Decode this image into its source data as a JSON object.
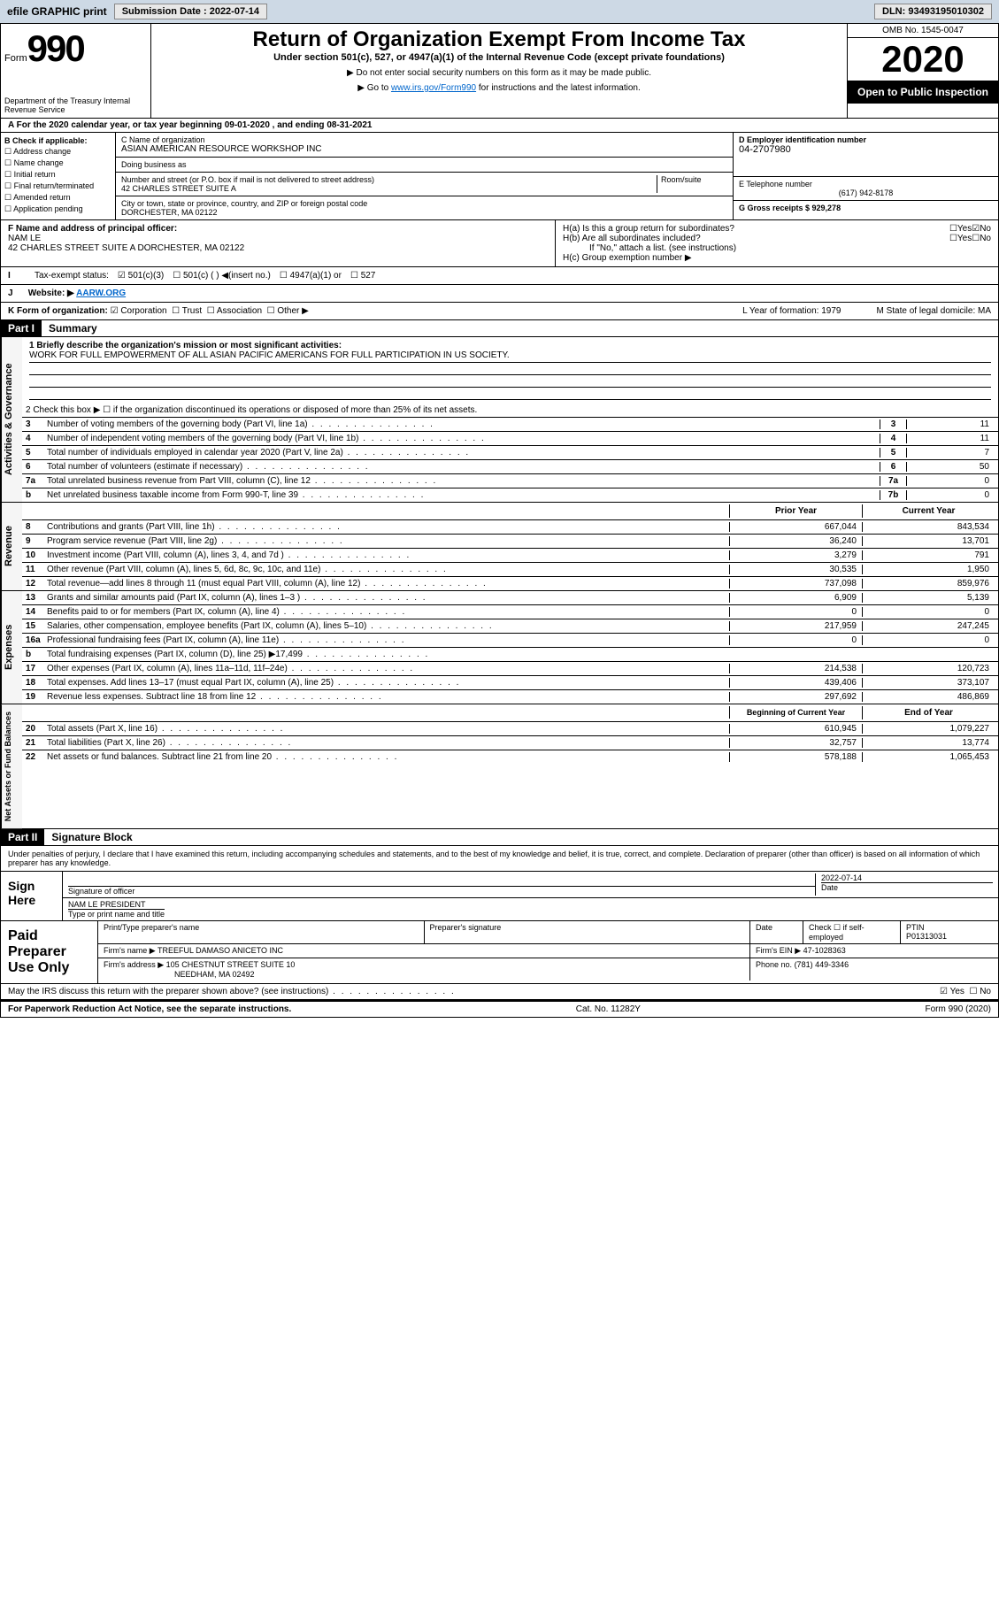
{
  "topbar": {
    "efile": "efile GRAPHIC print",
    "submission_label": "Submission Date : 2022-07-14",
    "dln": "DLN: 93493195010302"
  },
  "header": {
    "form": "Form",
    "form_num": "990",
    "dept": "Department of the Treasury Internal Revenue Service",
    "title": "Return of Organization Exempt From Income Tax",
    "subtitle": "Under section 501(c), 527, or 4947(a)(1) of the Internal Revenue Code (except private foundations)",
    "note1": "▶ Do not enter social security numbers on this form as it may be made public.",
    "note2_pre": "▶ Go to ",
    "note2_link": "www.irs.gov/Form990",
    "note2_post": " for instructions and the latest information.",
    "omb": "OMB No. 1545-0047",
    "year": "2020",
    "public": "Open to Public Inspection"
  },
  "tax_year": "A For the 2020 calendar year, or tax year beginning 09-01-2020   , and ending 08-31-2021",
  "section_b": {
    "label": "B Check if applicable:",
    "checks": [
      "Address change",
      "Name change",
      "Initial return",
      "Final return/terminated",
      "Amended return",
      "Application pending"
    ]
  },
  "section_c": {
    "name_label": "C Name of organization",
    "name": "ASIAN AMERICAN RESOURCE WORKSHOP INC",
    "dba_label": "Doing business as",
    "dba": "",
    "addr_label": "Number and street (or P.O. box if mail is not delivered to street address)",
    "room_label": "Room/suite",
    "addr": "42 CHARLES STREET SUITE A",
    "city_label": "City or town, state or province, country, and ZIP or foreign postal code",
    "city": "DORCHESTER, MA  02122"
  },
  "section_d": {
    "label": "D Employer identification number",
    "ein": "04-2707980"
  },
  "section_e": {
    "label": "E Telephone number",
    "phone": "(617) 942-8178"
  },
  "section_g": {
    "label": "G Gross receipts $ 929,278"
  },
  "section_f": {
    "label": "F  Name and address of principal officer:",
    "name": "NAM LE",
    "addr": "42 CHARLES STREET SUITE A DORCHESTER, MA  02122"
  },
  "section_h": {
    "ha": "H(a)  Is this a group return for subordinates?",
    "hb": "H(b)  Are all subordinates included?",
    "hb_note": "If \"No,\" attach a list. (see instructions)",
    "hc": "H(c)  Group exemption number ▶",
    "yes": "Yes",
    "no": "No"
  },
  "section_i": {
    "label": "Tax-exempt status:",
    "opt1": "501(c)(3)",
    "opt2": "501(c) (  ) ◀(insert no.)",
    "opt3": "4947(a)(1) or",
    "opt4": "527"
  },
  "section_j": {
    "label": "Website: ▶",
    "url": "AARW.ORG"
  },
  "section_k": {
    "label": "K Form of organization:",
    "opts": [
      "Corporation",
      "Trust",
      "Association",
      "Other ▶"
    ],
    "l_label": "L Year of formation: 1979",
    "m_label": "M State of legal domicile: MA"
  },
  "part1": {
    "header": "Part I",
    "title": "Summary",
    "line1_label": "1  Briefly describe the organization's mission or most significant activities:",
    "mission": "WORK FOR FULL EMPOWERMENT OF ALL ASIAN PACIFIC AMERICANS FOR FULL PARTICIPATION IN US SOCIETY.",
    "line2": "2   Check this box ▶ ☐  if the organization discontinued its operations or disposed of more than 25% of its net assets.",
    "governance_label": "Activities & Governance",
    "revenue_label": "Revenue",
    "expenses_label": "Expenses",
    "netassets_label": "Net Assets or Fund Balances",
    "lines_gov": [
      {
        "n": "3",
        "t": "Number of voting members of the governing body (Part VI, line 1a)",
        "b": "3",
        "v": "11"
      },
      {
        "n": "4",
        "t": "Number of independent voting members of the governing body (Part VI, line 1b)",
        "b": "4",
        "v": "11"
      },
      {
        "n": "5",
        "t": "Total number of individuals employed in calendar year 2020 (Part V, line 2a)",
        "b": "5",
        "v": "7"
      },
      {
        "n": "6",
        "t": "Total number of volunteers (estimate if necessary)",
        "b": "6",
        "v": "50"
      },
      {
        "n": "7a",
        "t": "Total unrelated business revenue from Part VIII, column (C), line 12",
        "b": "7a",
        "v": "0"
      },
      {
        "n": "b",
        "t": "Net unrelated business taxable income from Form 990-T, line 39",
        "b": "7b",
        "v": "0"
      }
    ],
    "prior_year": "Prior Year",
    "current_year": "Current Year",
    "lines_rev": [
      {
        "n": "8",
        "t": "Contributions and grants (Part VIII, line 1h)",
        "p": "667,044",
        "c": "843,534"
      },
      {
        "n": "9",
        "t": "Program service revenue (Part VIII, line 2g)",
        "p": "36,240",
        "c": "13,701"
      },
      {
        "n": "10",
        "t": "Investment income (Part VIII, column (A), lines 3, 4, and 7d )",
        "p": "3,279",
        "c": "791"
      },
      {
        "n": "11",
        "t": "Other revenue (Part VIII, column (A), lines 5, 6d, 8c, 9c, 10c, and 11e)",
        "p": "30,535",
        "c": "1,950"
      },
      {
        "n": "12",
        "t": "Total revenue—add lines 8 through 11 (must equal Part VIII, column (A), line 12)",
        "p": "737,098",
        "c": "859,976"
      }
    ],
    "lines_exp": [
      {
        "n": "13",
        "t": "Grants and similar amounts paid (Part IX, column (A), lines 1–3 )",
        "p": "6,909",
        "c": "5,139"
      },
      {
        "n": "14",
        "t": "Benefits paid to or for members (Part IX, column (A), line 4)",
        "p": "0",
        "c": "0"
      },
      {
        "n": "15",
        "t": "Salaries, other compensation, employee benefits (Part IX, column (A), lines 5–10)",
        "p": "217,959",
        "c": "247,245"
      },
      {
        "n": "16a",
        "t": "Professional fundraising fees (Part IX, column (A), line 11e)",
        "p": "0",
        "c": "0"
      },
      {
        "n": "b",
        "t": "Total fundraising expenses (Part IX, column (D), line 25) ▶17,499",
        "p": "",
        "c": ""
      },
      {
        "n": "17",
        "t": "Other expenses (Part IX, column (A), lines 11a–11d, 11f–24e)",
        "p": "214,538",
        "c": "120,723"
      },
      {
        "n": "18",
        "t": "Total expenses. Add lines 13–17 (must equal Part IX, column (A), line 25)",
        "p": "439,406",
        "c": "373,107"
      },
      {
        "n": "19",
        "t": "Revenue less expenses. Subtract line 18 from line 12",
        "p": "297,692",
        "c": "486,869"
      }
    ],
    "begin_year": "Beginning of Current Year",
    "end_year": "End of Year",
    "lines_net": [
      {
        "n": "20",
        "t": "Total assets (Part X, line 16)",
        "p": "610,945",
        "c": "1,079,227"
      },
      {
        "n": "21",
        "t": "Total liabilities (Part X, line 26)",
        "p": "32,757",
        "c": "13,774"
      },
      {
        "n": "22",
        "t": "Net assets or fund balances. Subtract line 21 from line 20",
        "p": "578,188",
        "c": "1,065,453"
      }
    ]
  },
  "part2": {
    "header": "Part II",
    "title": "Signature Block",
    "declaration": "Under penalties of perjury, I declare that I have examined this return, including accompanying schedules and statements, and to the best of my knowledge and belief, it is true, correct, and complete. Declaration of preparer (other than officer) is based on all information of which preparer has any knowledge.",
    "sign_here": "Sign Here",
    "sig_officer": "Signature of officer",
    "date": "Date",
    "sig_date": "2022-07-14",
    "officer_name": "NAM LE PRESIDENT",
    "type_name": "Type or print name and title",
    "paid_prep": "Paid Preparer Use Only",
    "prep_name_label": "Print/Type preparer's name",
    "prep_sig_label": "Preparer's signature",
    "date_label": "Date",
    "check_self": "Check ☐ if self-employed",
    "ptin_label": "PTIN",
    "ptin": "P01313031",
    "firm_name_label": "Firm's name    ▶",
    "firm_name": "TREEFUL DAMASO ANICETO INC",
    "firm_ein_label": "Firm's EIN ▶",
    "firm_ein": "47-1028363",
    "firm_addr_label": "Firm's address ▶",
    "firm_addr1": "105 CHESTNUT STREET SUITE 10",
    "firm_addr2": "NEEDHAM, MA  02492",
    "phone_label": "Phone no.",
    "phone": "(781) 449-3346",
    "may_irs": "May the IRS discuss this return with the preparer shown above? (see instructions)",
    "paperwork": "For Paperwork Reduction Act Notice, see the separate instructions.",
    "cat": "Cat. No. 11282Y",
    "form_foot": "Form 990 (2020)"
  }
}
